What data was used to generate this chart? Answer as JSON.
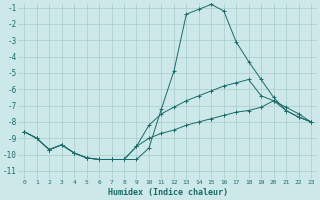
{
  "xlabel": "Humidex (Indice chaleur)",
  "background_color": "#cce8e8",
  "grid_color": "#aacccc",
  "line_color": "#1a6b6b",
  "xlim": [
    -0.5,
    23.5
  ],
  "ylim": [
    -11.5,
    -0.7
  ],
  "yticks": [
    -11,
    -10,
    -9,
    -8,
    -7,
    -6,
    -5,
    -4,
    -3,
    -2,
    -1
  ],
  "xticks": [
    0,
    1,
    2,
    3,
    4,
    5,
    6,
    7,
    8,
    9,
    10,
    11,
    12,
    13,
    14,
    15,
    16,
    17,
    18,
    19,
    20,
    21,
    22,
    23
  ],
  "series": [
    {
      "points": [
        [
          0,
          -8.6
        ],
        [
          1,
          -9.0
        ],
        [
          2,
          -9.7
        ],
        [
          3,
          -9.4
        ],
        [
          4,
          -9.9
        ],
        [
          5,
          -10.2
        ],
        [
          6,
          -10.3
        ],
        [
          7,
          -10.3
        ],
        [
          8,
          -10.3
        ],
        [
          9,
          -10.3
        ],
        [
          10,
          -9.6
        ],
        [
          11,
          -7.2
        ],
        [
          12,
          -4.9
        ],
        [
          13,
          -1.4
        ],
        [
          14,
          -1.1
        ],
        [
          15,
          -0.8
        ],
        [
          16,
          -1.2
        ],
        [
          17,
          -3.1
        ],
        [
          18,
          -4.3
        ],
        [
          19,
          -5.4
        ],
        [
          20,
          -6.5
        ],
        [
          21,
          -7.3
        ],
        [
          22,
          -7.7
        ],
        [
          23,
          -8.0
        ]
      ]
    },
    {
      "points": [
        [
          0,
          -8.6
        ],
        [
          1,
          -9.0
        ],
        [
          2,
          -9.7
        ],
        [
          3,
          -9.4
        ],
        [
          4,
          -9.9
        ],
        [
          5,
          -10.2
        ],
        [
          6,
          -10.3
        ],
        [
          7,
          -10.3
        ],
        [
          8,
          -10.3
        ],
        [
          9,
          -9.5
        ],
        [
          10,
          -8.2
        ],
        [
          11,
          -7.5
        ],
        [
          12,
          -7.1
        ],
        [
          13,
          -6.7
        ],
        [
          14,
          -6.4
        ],
        [
          15,
          -6.1
        ],
        [
          16,
          -5.8
        ],
        [
          17,
          -5.6
        ],
        [
          18,
          -5.4
        ],
        [
          19,
          -6.4
        ],
        [
          20,
          -6.7
        ],
        [
          21,
          -7.1
        ],
        [
          22,
          -7.5
        ],
        [
          23,
          -8.0
        ]
      ]
    },
    {
      "points": [
        [
          0,
          -8.6
        ],
        [
          1,
          -9.0
        ],
        [
          2,
          -9.7
        ],
        [
          3,
          -9.4
        ],
        [
          4,
          -9.9
        ],
        [
          5,
          -10.2
        ],
        [
          6,
          -10.3
        ],
        [
          7,
          -10.3
        ],
        [
          8,
          -10.3
        ],
        [
          9,
          -9.5
        ],
        [
          10,
          -9.0
        ],
        [
          11,
          -8.7
        ],
        [
          12,
          -8.5
        ],
        [
          13,
          -8.2
        ],
        [
          14,
          -8.0
        ],
        [
          15,
          -7.8
        ],
        [
          16,
          -7.6
        ],
        [
          17,
          -7.4
        ],
        [
          18,
          -7.3
        ],
        [
          19,
          -7.1
        ],
        [
          20,
          -6.7
        ],
        [
          21,
          -7.3
        ],
        [
          22,
          -7.7
        ],
        [
          23,
          -8.0
        ]
      ]
    }
  ]
}
